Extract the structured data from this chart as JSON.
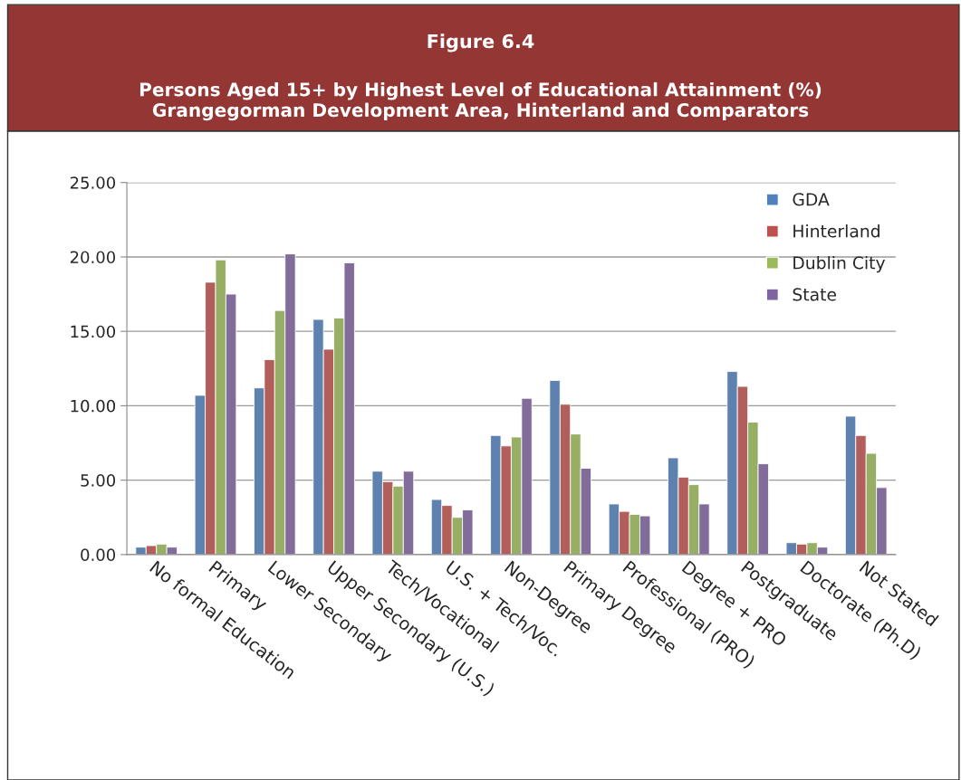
{
  "chart_data": {
    "type": "bar",
    "title": "Figure 6.4",
    "subtitle": "Persons Aged 15+ by Highest Level of Educational Attainment (%)\nGrangegorman Development Area, Hinterland and Comparators",
    "categories": [
      "No formal Education",
      "Primary",
      "Lower Secondary",
      "Upper Secondary (U.S.)",
      "Tech/Vocational",
      "U.S. + Tech/Voc.",
      "Non-Degree",
      "Primary Degree",
      "Professional (PRO)",
      "Degree + PRO",
      "Postgraduate",
      "Doctorate (Ph.D)",
      "Not Stated"
    ],
    "series": [
      {
        "name": "GDA",
        "color": "#4f81bd",
        "values": [
          0.5,
          10.7,
          11.2,
          15.8,
          5.6,
          3.7,
          8.0,
          11.7,
          3.4,
          6.5,
          12.3,
          0.8,
          9.3
        ]
      },
      {
        "name": "Hinterland",
        "color": "#c0504d",
        "values": [
          0.6,
          18.3,
          13.1,
          13.8,
          4.9,
          3.3,
          7.3,
          10.1,
          2.9,
          5.2,
          11.3,
          0.7,
          8.0
        ]
      },
      {
        "name": "Dublin City",
        "color": "#9bbb59",
        "values": [
          0.7,
          19.8,
          16.4,
          15.9,
          4.6,
          2.5,
          7.9,
          8.1,
          2.7,
          4.7,
          8.9,
          0.8,
          6.8
        ]
      },
      {
        "name": "State",
        "color": "#8064a2",
        "values": [
          0.5,
          17.5,
          20.2,
          19.6,
          5.6,
          3.0,
          10.5,
          5.8,
          2.6,
          3.4,
          6.1,
          0.5,
          4.5
        ]
      }
    ],
    "ylim": [
      0,
      25
    ],
    "yticks": [
      {
        "value": 0,
        "label": "0.00"
      },
      {
        "value": 5,
        "label": "5.00"
      },
      {
        "value": 10,
        "label": "10.00"
      },
      {
        "value": 15,
        "label": "15.00"
      },
      {
        "value": 20,
        "label": "20.00"
      },
      {
        "value": 25,
        "label": "25.00"
      }
    ],
    "grid": "y",
    "legend": "top right"
  }
}
